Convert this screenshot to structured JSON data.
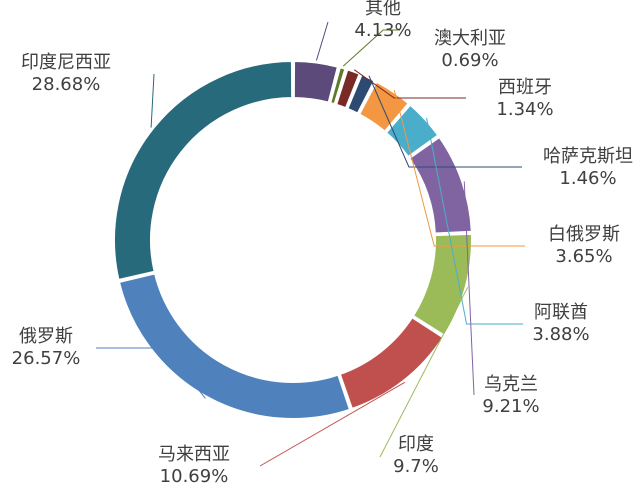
{
  "chart_data": {
    "type": "pie",
    "variant": "donut",
    "title": "",
    "legend": "none",
    "series": [
      {
        "name": "其他",
        "value": 4.13,
        "label": "4.13%",
        "color": "#5b4a7a"
      },
      {
        "name": "澳大利亚",
        "value": 0.69,
        "label": "0.69%",
        "color": "#5e7a2a"
      },
      {
        "name": "西班牙",
        "value": 1.34,
        "label": "1.34%",
        "color": "#7a2a26"
      },
      {
        "name": "哈萨克斯坦",
        "value": 1.46,
        "label": "1.46%",
        "color": "#2c4a72"
      },
      {
        "name": "白俄罗斯",
        "value": 3.65,
        "label": "3.65%",
        "color": "#f39743"
      },
      {
        "name": "阿联酋",
        "value": 3.88,
        "label": "3.88%",
        "color": "#4aaecb"
      },
      {
        "name": "乌克兰",
        "value": 9.21,
        "label": "9.21%",
        "color": "#8064a2"
      },
      {
        "name": "印度",
        "value": 9.7,
        "label": "9.7%",
        "color": "#9bbb59"
      },
      {
        "name": "马来西亚",
        "value": 10.69,
        "label": "10.69%",
        "color": "#c0504d"
      },
      {
        "name": "俄罗斯",
        "value": 26.57,
        "label": "26.57%",
        "color": "#4f81bd"
      },
      {
        "name": "印度尼西亚",
        "value": 28.68,
        "label": "28.68%",
        "color": "#276a7c"
      }
    ]
  }
}
